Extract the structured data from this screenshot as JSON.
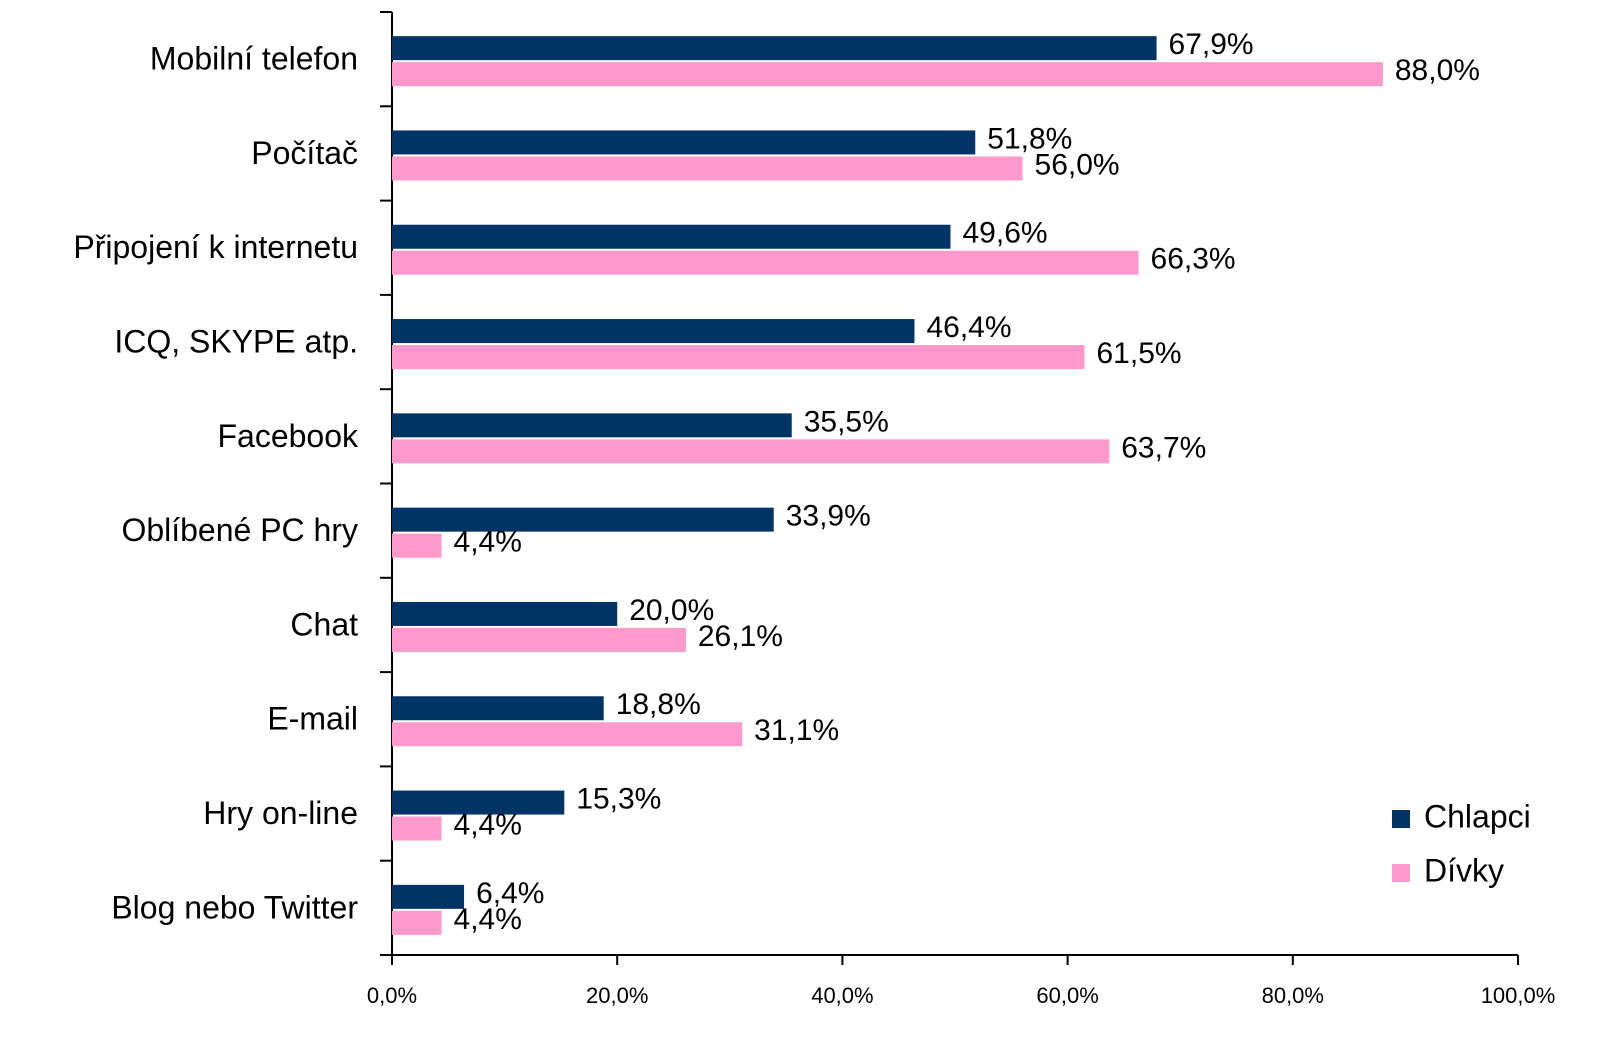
{
  "chart_data": {
    "type": "bar",
    "orientation": "horizontal",
    "categories": [
      "Mobilní telefon",
      "Počítač",
      "Připojení k internetu",
      "ICQ, SKYPE atp.",
      "Facebook",
      "Oblíbené PC hry",
      "Chat",
      "E-mail",
      "Hry on-line",
      "Blog nebo Twitter"
    ],
    "series": [
      {
        "name": "Chlapci",
        "color": "#003366",
        "values": [
          67.9,
          51.8,
          49.6,
          46.4,
          35.5,
          33.9,
          20.0,
          18.8,
          15.3,
          6.4
        ],
        "value_labels": [
          "67,9%",
          "51,8%",
          "49,6%",
          "46,4%",
          "35,5%",
          "33,9%",
          "20,0%",
          "18,8%",
          "15,3%",
          "6,4%"
        ]
      },
      {
        "name": "Dívky",
        "color": "#ff99cc",
        "values": [
          88.0,
          56.0,
          66.3,
          61.5,
          63.7,
          4.4,
          26.1,
          31.1,
          4.4,
          4.4
        ],
        "value_labels": [
          "88,0%",
          "56,0%",
          "66,3%",
          "61,5%",
          "63,7%",
          "4,4%",
          "26,1%",
          "31,1%",
          "4,4%",
          "4,4%"
        ]
      }
    ],
    "xlim": [
      0,
      100
    ],
    "xticks": [
      {
        "value": 0,
        "label": "0,0%"
      },
      {
        "value": 20,
        "label": "20,0%"
      },
      {
        "value": 40,
        "label": "40,0%"
      },
      {
        "value": 60,
        "label": "60,0%"
      },
      {
        "value": 80,
        "label": "80,0%"
      },
      {
        "value": 100,
        "label": "100,0%"
      }
    ],
    "legend": "lower right"
  }
}
